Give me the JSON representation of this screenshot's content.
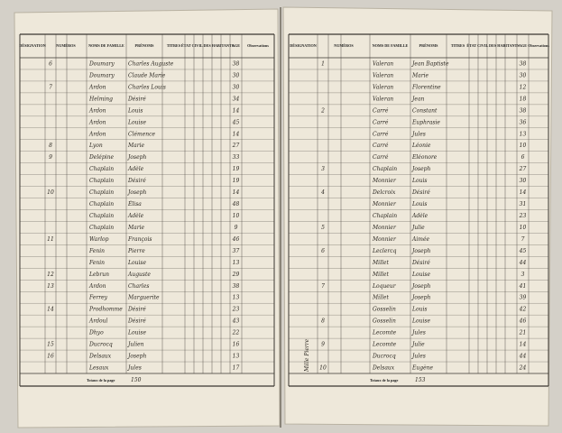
{
  "headers": {
    "designation": "DÉSIGNATION",
    "numeros": "NUMÉROS",
    "noms": "NOMS DE FAMILLE",
    "prenoms": "PRÉNOMS",
    "titres": "TITRES",
    "etat_civil": "ÉTAT CIVIL DES HABITANTS",
    "age": "AGE",
    "observations": "Observations",
    "totaux": "Totaux de la page"
  },
  "left": {
    "rows": [
      [
        "6",
        "Doumary",
        "Charles Auguste",
        "38"
      ],
      [
        "",
        "Doumary",
        "Claude Marie",
        "30"
      ],
      [
        "7",
        "Ardon",
        "Charles Louis",
        "30"
      ],
      [
        "",
        "Helming",
        "Désiré",
        "34"
      ],
      [
        "",
        "Ardon",
        "Louis",
        "14"
      ],
      [
        "",
        "Ardon",
        "Louise",
        "45"
      ],
      [
        "",
        "Ardon",
        "Clémence",
        "14"
      ],
      [
        "8",
        "Lyon",
        "Marie",
        "27"
      ],
      [
        "9",
        "Delépine",
        "Joseph",
        "33"
      ],
      [
        "",
        "Chaplain",
        "Adèle",
        "19"
      ],
      [
        "",
        "Chaplain",
        "Désiré",
        "19"
      ],
      [
        "10",
        "Chaplain",
        "Joseph",
        "14"
      ],
      [
        "",
        "Chaplain",
        "Élisa",
        "48"
      ],
      [
        "",
        "Chaplain",
        "Adèle",
        "10"
      ],
      [
        "",
        "Chaplain",
        "Marie",
        "9"
      ],
      [
        "11",
        "Warlop",
        "François",
        "46"
      ],
      [
        "",
        "Fenin",
        "Pierre",
        "37"
      ],
      [
        "",
        "Fenin",
        "Louise",
        "13"
      ],
      [
        "12",
        "Lebrun",
        "Auguste",
        "29"
      ],
      [
        "13",
        "Ardon",
        "Charles",
        "38"
      ],
      [
        "",
        "Ferrey",
        "Marguerite",
        "13"
      ],
      [
        "14",
        "Prodhomme",
        "Désiré",
        "23"
      ],
      [
        "",
        "Ardoul",
        "Désiré",
        "43"
      ],
      [
        "",
        "Dhyo",
        "Louise",
        "22"
      ],
      [
        "15",
        "Ducrocq",
        "Julien",
        "16"
      ],
      [
        "16",
        "Delsaux",
        "Joseph",
        "13"
      ],
      [
        "",
        "Lesaux",
        "Jules",
        "17"
      ]
    ],
    "total": "150"
  },
  "right": {
    "rows": [
      [
        "1",
        "Valeran",
        "Jean Baptiste",
        "38"
      ],
      [
        "",
        "Valeran",
        "Marie",
        "30"
      ],
      [
        "",
        "Valeran",
        "Florentine",
        "12"
      ],
      [
        "",
        "Valeran",
        "Jean",
        "18"
      ],
      [
        "2",
        "Carré",
        "Constant",
        "38"
      ],
      [
        "",
        "Carré",
        "Euphrasie",
        "36"
      ],
      [
        "",
        "Carré",
        "Jules",
        "13"
      ],
      [
        "",
        "Carré",
        "Léonie",
        "10"
      ],
      [
        "",
        "Carré",
        "Eléonore",
        "6"
      ],
      [
        "3",
        "Chaplain",
        "Joseph",
        "27"
      ],
      [
        "",
        "Monnier",
        "Louis",
        "30"
      ],
      [
        "4",
        "Delcroix",
        "Désiré",
        "14"
      ],
      [
        "",
        "Monnier",
        "Louis",
        "31"
      ],
      [
        "",
        "Chaplain",
        "Adèle",
        "23"
      ],
      [
        "5",
        "Monnier",
        "Julie",
        "10"
      ],
      [
        "",
        "Monnier",
        "Aimée",
        "7"
      ],
      [
        "6",
        "Leclercq",
        "Joseph",
        "45"
      ],
      [
        "",
        "Millet",
        "Désiré",
        "44"
      ],
      [
        "",
        "Millet",
        "Louise",
        "3"
      ],
      [
        "7",
        "Loqueur",
        "Joseph",
        "41"
      ],
      [
        "",
        "Millet",
        "Joseph",
        "39"
      ],
      [
        "",
        "Gosselin",
        "Louis",
        "42"
      ],
      [
        "8",
        "Gosselin",
        "Louise",
        "46"
      ],
      [
        "",
        "Lecomte",
        "Jules",
        "21"
      ],
      [
        "9",
        "Lecomte",
        "Julie",
        "14"
      ],
      [
        "",
        "Ducrocq",
        "Jules",
        "44"
      ],
      [
        "10",
        "Delsaux",
        "Eugène",
        "24"
      ]
    ],
    "total": "153",
    "side_note": "Mille Pierre"
  }
}
